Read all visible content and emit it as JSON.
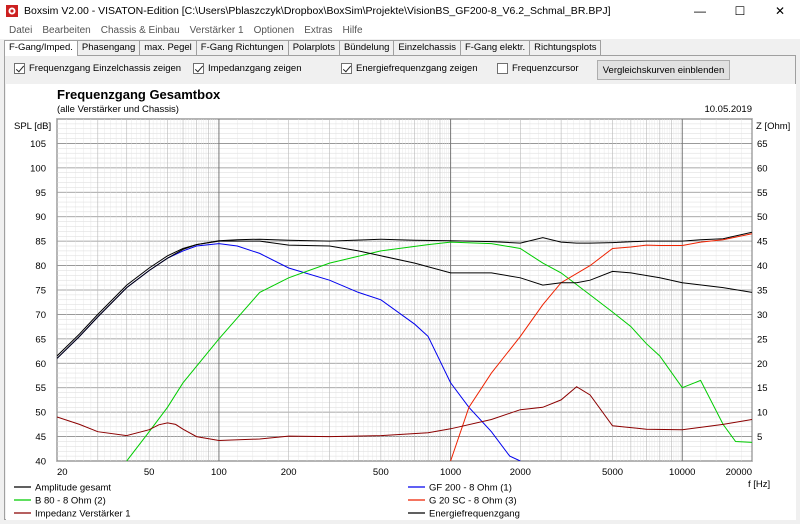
{
  "window": {
    "title": "Boxsim V2.00 - VISATON-Edition [C:\\Users\\Pblaszczyk\\Dropbox\\BoxSim\\Projekte\\VisionBS_GF200-8_V6.2_Schmal_BR.BPJ]",
    "minimize": "—",
    "maximize": "☐",
    "close": "✕"
  },
  "menu": [
    "Datei",
    "Bearbeiten",
    "Chassis & Einbau",
    "Verstärker 1",
    "Optionen",
    "Extras",
    "Hilfe"
  ],
  "tabs": [
    "F-Gang/Imped.",
    "Phasengang",
    "max. Pegel",
    "F-Gang Richtungen",
    "Polarplots",
    "Bündelung",
    "Einzelchassis",
    "F-Gang elektr.",
    "Richtungsplots"
  ],
  "active_tab": 0,
  "options": {
    "einzelchassis": {
      "label": "Frequenzgang Einzelchassis zeigen",
      "checked": true
    },
    "impedanz": {
      "label": "Impedanzgang zeigen",
      "checked": true
    },
    "energie": {
      "label": "Energiefrequenzgang zeigen",
      "checked": true
    },
    "cursor": {
      "label": "Frequenzcursor",
      "checked": false
    },
    "compare_button": "Vergleichskurven einblenden"
  },
  "colors": {
    "amplitude": "#000000",
    "gf200": "#0000ee",
    "b80": "#00cc00",
    "g20sc": "#ee2200",
    "impedanz": "#8b0000",
    "energie": "#000000",
    "grid": "#b8b8b8"
  },
  "chart_data": {
    "type": "line",
    "title": "Frequenzgang Gesamtbox",
    "subtitle": "(alle Verstärker und Chassis)",
    "date": "10.05.2019",
    "ylabel_left": "SPL [dB]",
    "ylabel_right": "Z [Ohm]",
    "xlabel": "f [Hz]",
    "x_scale": "log",
    "xlim": [
      20,
      20000
    ],
    "ylim_left": [
      40,
      110
    ],
    "ylim_right": [
      0,
      70
    ],
    "x_ticks": [
      20,
      50,
      100,
      200,
      500,
      1000,
      2000,
      5000,
      10000,
      20000
    ],
    "y_ticks_left": [
      40,
      45,
      50,
      55,
      60,
      65,
      70,
      75,
      80,
      85,
      90,
      95,
      100,
      105
    ],
    "y_ticks_right": [
      5,
      10,
      15,
      20,
      25,
      30,
      35,
      40,
      45,
      50,
      55,
      60,
      65
    ],
    "series": [
      {
        "name": "Amplitude gesamt",
        "axis": "left",
        "color": "#000000",
        "x": [
          20,
          25,
          30,
          40,
          50,
          60,
          70,
          80,
          100,
          120,
          150,
          200,
          300,
          500,
          700,
          1000,
          1500,
          2000,
          2500,
          3000,
          3500,
          4000,
          5000,
          7000,
          10000,
          12000,
          15000,
          20000
        ],
        "y": [
          61.5,
          66,
          70,
          76,
          79.5,
          82,
          83.5,
          84.3,
          85.1,
          85.3,
          85.4,
          85.2,
          85,
          85.4,
          85.2,
          85.1,
          84.9,
          84.6,
          85.7,
          84.8,
          84.6,
          84.6,
          84.7,
          85,
          85,
          85.3,
          85.5,
          86.8
        ]
      },
      {
        "name": "GF 200 - 8 Ohm (1)",
        "axis": "left",
        "color": "#0000ee",
        "x": [
          20,
          25,
          30,
          40,
          50,
          60,
          70,
          80,
          100,
          120,
          150,
          200,
          300,
          400,
          500,
          700,
          800,
          1000,
          1200,
          1500,
          1800,
          2000
        ],
        "y": [
          61,
          65.5,
          69.5,
          75.5,
          79,
          81.5,
          83,
          84,
          84.5,
          84,
          82.5,
          79.5,
          77,
          74.5,
          73,
          68,
          65.5,
          56,
          51,
          46,
          41,
          40
        ]
      },
      {
        "name": "B 80 - 8 Ohm (2)",
        "axis": "left",
        "color": "#00cc00",
        "x": [
          40,
          50,
          60,
          70,
          100,
          150,
          200,
          300,
          500,
          800,
          1000,
          1500,
          2000,
          2500,
          3000,
          4000,
          5000,
          6000,
          7000,
          8000,
          10000,
          12000,
          15000,
          17000,
          20000
        ],
        "y": [
          40,
          46,
          51,
          56,
          65,
          74.5,
          77.5,
          80.5,
          83,
          84.3,
          84.8,
          84.5,
          83.5,
          80.5,
          78.5,
          74,
          70.5,
          67.5,
          64,
          61.5,
          55,
          56.5,
          47.5,
          44,
          43.8
        ]
      },
      {
        "name": "G 20 SC - 8 Ohm (3)",
        "axis": "left",
        "color": "#ee2200",
        "x": [
          1000,
          1200,
          1500,
          2000,
          2500,
          3000,
          4000,
          5000,
          6000,
          7000,
          8000,
          10000,
          12000,
          15000,
          20000
        ],
        "y": [
          40,
          51,
          58,
          65.5,
          72,
          76.5,
          80,
          83.5,
          83.8,
          84.2,
          84.1,
          84.1,
          84.8,
          85.3,
          86.5
        ]
      },
      {
        "name": "Impedanz Verstärker 1",
        "axis": "right",
        "color": "#8b0000",
        "x": [
          20,
          25,
          30,
          40,
          50,
          55,
          60,
          65,
          70,
          80,
          100,
          150,
          200,
          300,
          500,
          800,
          1000,
          1500,
          2000,
          2500,
          3000,
          3500,
          4000,
          5000,
          7000,
          10000,
          15000,
          20000
        ],
        "y": [
          9,
          7.5,
          6,
          5.2,
          6.4,
          7.4,
          7.8,
          7.5,
          6.5,
          5,
          4.2,
          4.5,
          5.1,
          5,
          5.2,
          5.8,
          6.6,
          8.5,
          10.5,
          11,
          12.5,
          15.2,
          13.5,
          7.2,
          6.5,
          6.4,
          7.5,
          8.5
        ]
      },
      {
        "name": "Energiefrequenzgang",
        "axis": "left",
        "color": "#000000",
        "x": [
          20,
          25,
          30,
          40,
          50,
          60,
          70,
          80,
          100,
          150,
          200,
          300,
          400,
          500,
          700,
          1000,
          1500,
          2000,
          2500,
          3000,
          3500,
          4000,
          5000,
          6000,
          8000,
          10000,
          15000,
          20000
        ],
        "y": [
          61,
          65.5,
          69.5,
          75.5,
          79,
          81.5,
          83.3,
          84.3,
          85,
          85,
          84.2,
          84,
          83,
          82,
          80.5,
          78.5,
          78.5,
          77.5,
          76,
          76.5,
          76.5,
          77,
          78.8,
          78.5,
          77.5,
          76.5,
          75.5,
          74.5
        ]
      }
    ]
  },
  "legend": [
    {
      "name": "Amplitude gesamt",
      "color": "#000000"
    },
    {
      "name": "GF 200 - 8 Ohm (1)",
      "color": "#0000ee"
    },
    {
      "name": "B 80 - 8 Ohm (2)",
      "color": "#00cc00"
    },
    {
      "name": "G 20 SC - 8 Ohm (3)",
      "color": "#ee2200"
    },
    {
      "name": "Impedanz Verstärker 1",
      "color": "#8b0000"
    },
    {
      "name": "Energiefrequenzgang",
      "color": "#000000"
    }
  ]
}
